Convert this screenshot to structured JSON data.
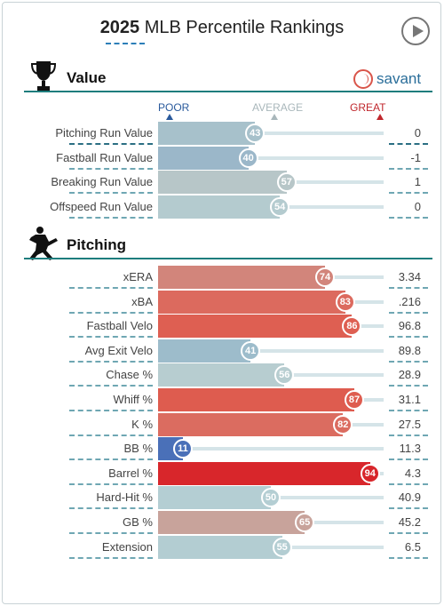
{
  "header": {
    "year": "2025",
    "title": " MLB Percentile Rankings"
  },
  "value_section": {
    "title": "Value",
    "brand": "savant",
    "scale": {
      "poor": "POOR",
      "average": "AVERAGE",
      "great": "GREAT"
    },
    "rows": [
      {
        "metric": "Pitching Run Value",
        "percentile": 43,
        "value": "0",
        "color": "#a7c1cb"
      },
      {
        "metric": "Fastball Run Value",
        "percentile": 40,
        "value": "-1",
        "color": "#9bb7c9"
      },
      {
        "metric": "Breaking Run Value",
        "percentile": 57,
        "value": "1",
        "color": "#b7c6c8"
      },
      {
        "metric": "Offspeed Run Value",
        "percentile": 54,
        "value": "0",
        "color": "#b4cbcf"
      }
    ]
  },
  "pitching_section": {
    "title": "Pitching",
    "rows": [
      {
        "metric": "xERA",
        "percentile": 74,
        "value": "3.34",
        "color": "#d2857b"
      },
      {
        "metric": "xBA",
        "percentile": 83,
        "value": ".216",
        "color": "#dc6a5e"
      },
      {
        "metric": "Fastball Velo",
        "percentile": 86,
        "value": "96.8",
        "color": "#de5f52"
      },
      {
        "metric": "Avg Exit Velo",
        "percentile": 41,
        "value": "89.8",
        "color": "#9dbccb"
      },
      {
        "metric": "Chase %",
        "percentile": 56,
        "value": "28.9",
        "color": "#b7cdd0"
      },
      {
        "metric": "Whiff %",
        "percentile": 87,
        "value": "31.1",
        "color": "#de5c4f"
      },
      {
        "metric": "K %",
        "percentile": 82,
        "value": "27.5",
        "color": "#db6c60"
      },
      {
        "metric": "BB %",
        "percentile": 11,
        "value": "11.3",
        "color": "#4a70b8"
      },
      {
        "metric": "Barrel %",
        "percentile": 94,
        "value": "4.3",
        "color": "#d8262b"
      },
      {
        "metric": "Hard-Hit %",
        "percentile": 50,
        "value": "40.9",
        "color": "#b4ced3"
      },
      {
        "metric": "GB %",
        "percentile": 65,
        "value": "45.2",
        "color": "#c8a39b"
      },
      {
        "metric": "Extension",
        "percentile": 55,
        "value": "6.5",
        "color": "#b3cdd2"
      }
    ]
  }
}
